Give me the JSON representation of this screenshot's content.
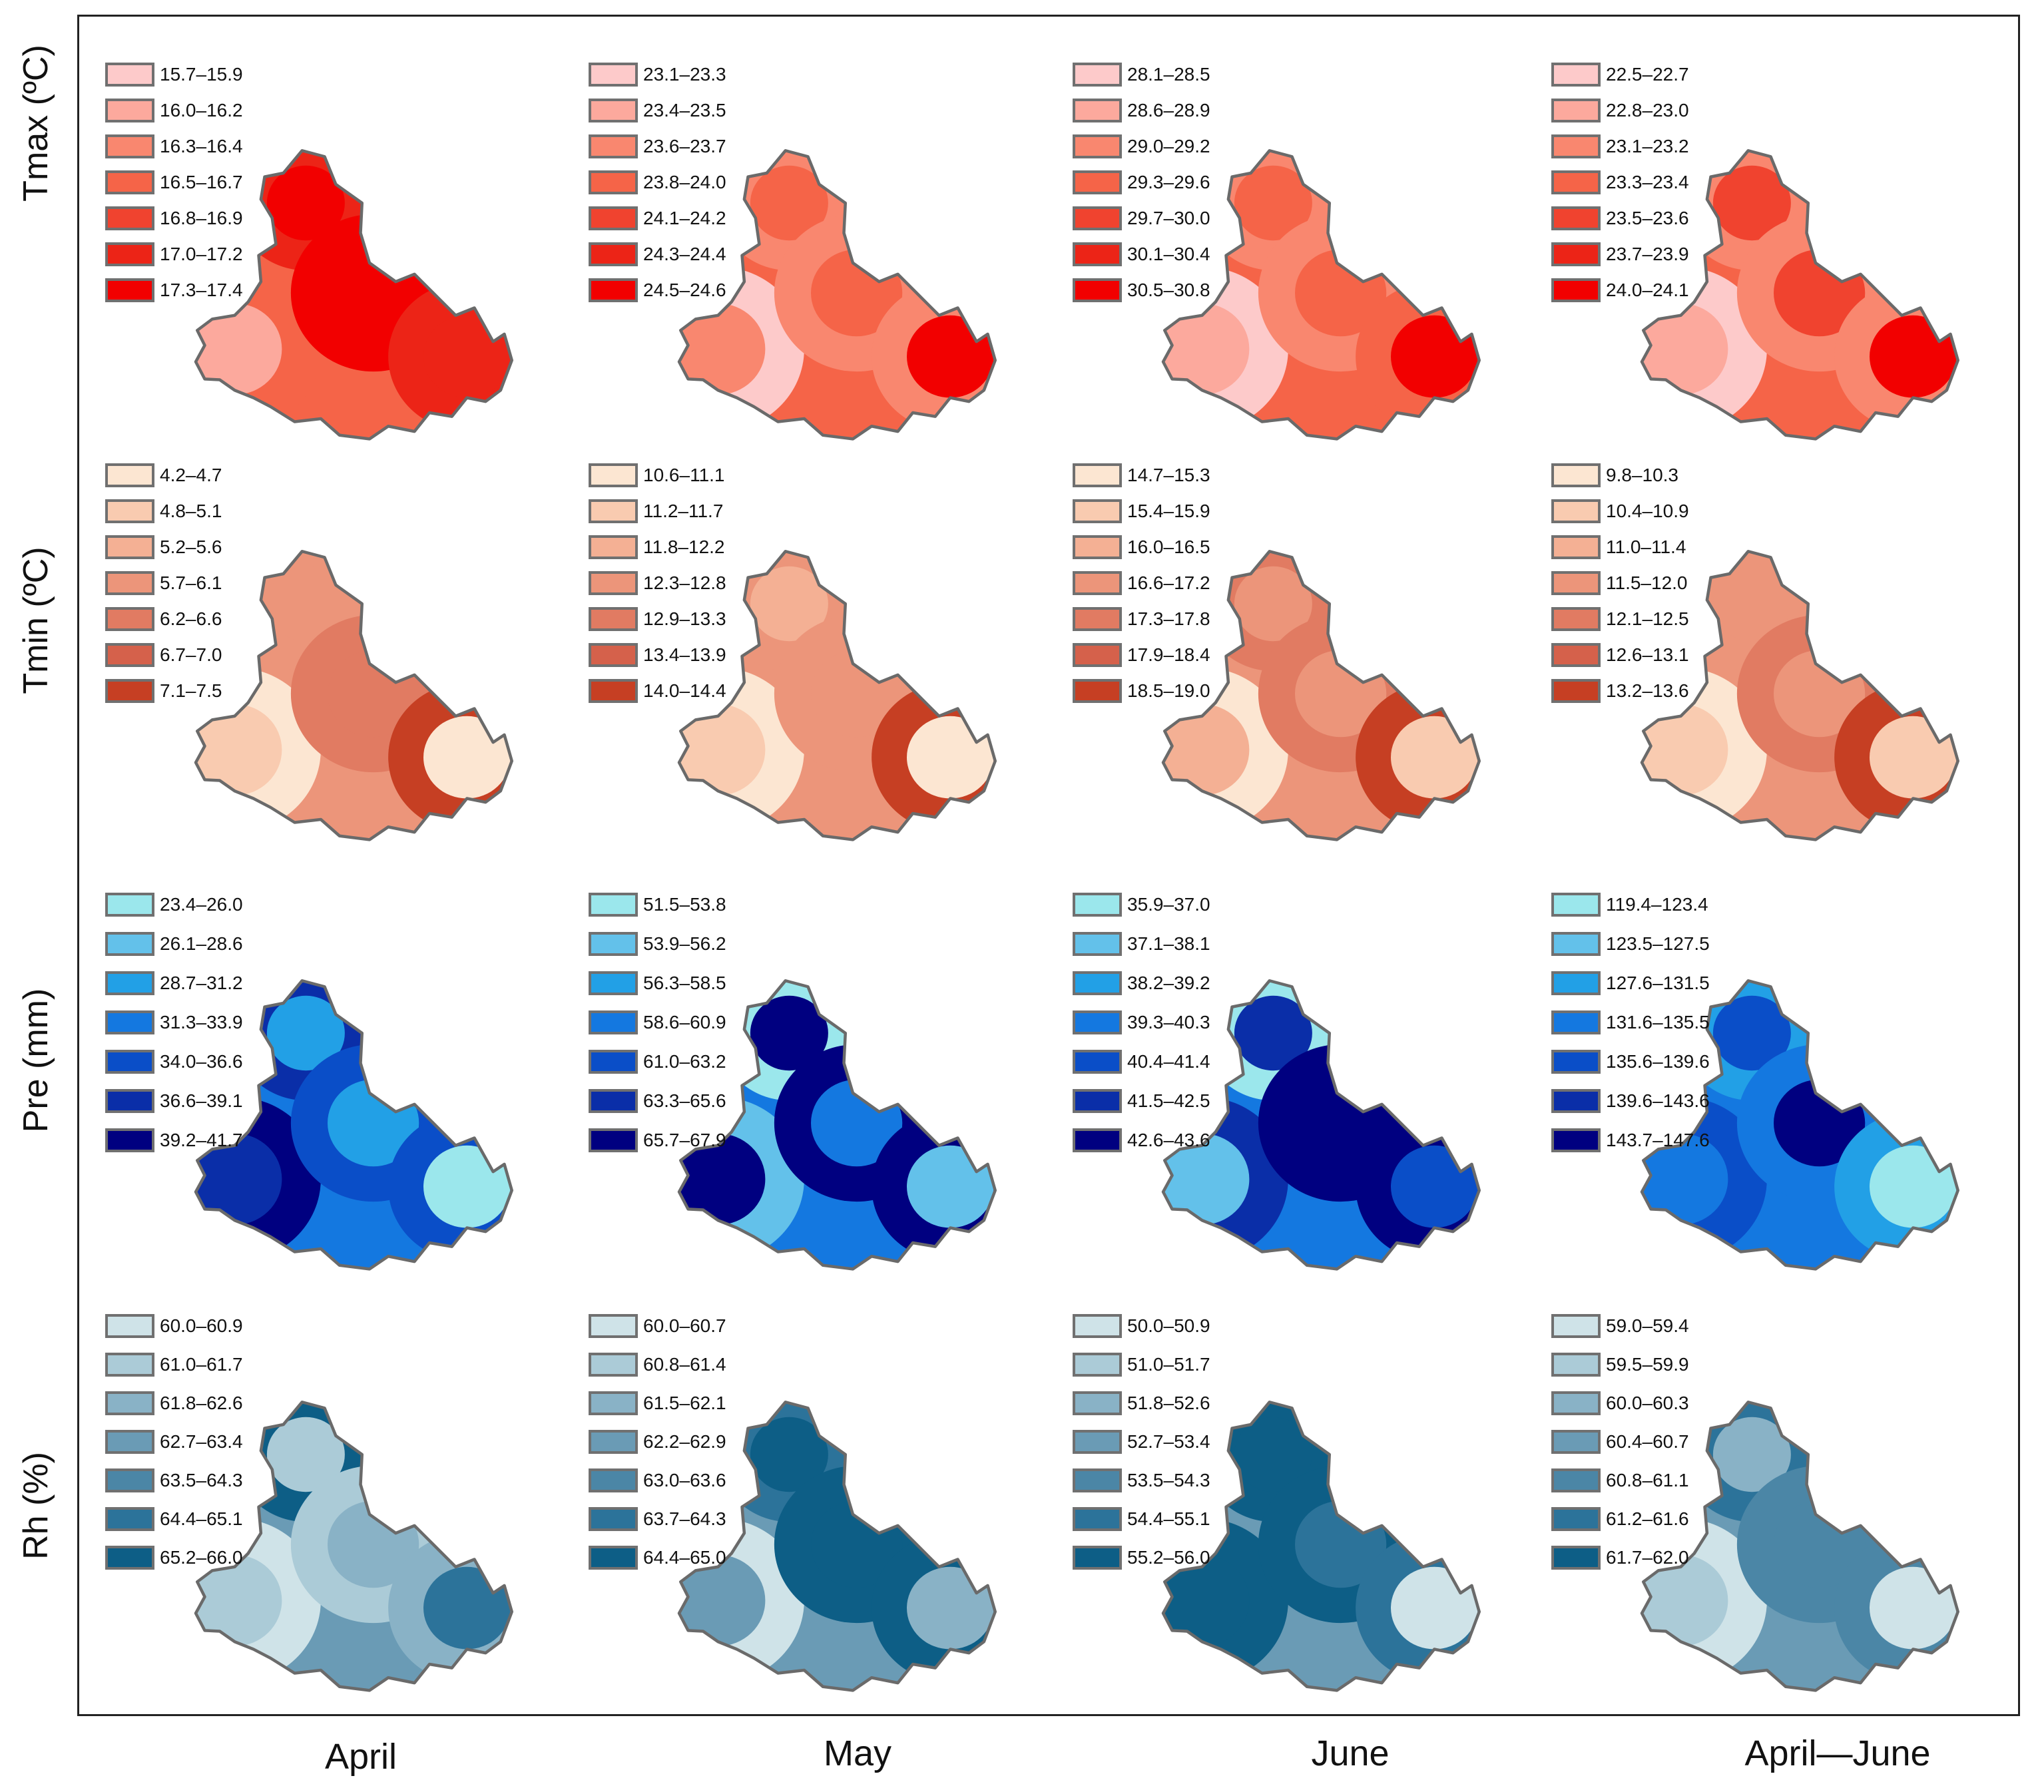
{
  "figure": {
    "row_labels": [
      "Tmax (ºC)",
      "Tmin (ºC)",
      "Pre (mm)",
      "Rh (%)"
    ],
    "column_labels": [
      "April",
      "May",
      "June",
      "April—June"
    ]
  },
  "panels": [
    [
      {
        "legend": [
          "15.7–15.9",
          "16.0–16.2",
          "16.3–16.4",
          "16.5–16.7",
          "16.8–16.9",
          "17.0–17.2",
          "17.3–17.4"
        ],
        "colors": [
          "#fdcaca",
          "#fca99d",
          "#f9876f",
          "#f56448",
          "#f0432f",
          "#ec2417",
          "#f20000"
        ]
      },
      {
        "legend": [
          "23.1–23.3",
          "23.4–23.5",
          "23.6–23.7",
          "23.8–24.0",
          "24.1–24.2",
          "24.3–24.4",
          "24.5–24.6"
        ],
        "colors": [
          "#fdcaca",
          "#fca99d",
          "#f9876f",
          "#f56448",
          "#f0432f",
          "#ec2417",
          "#f20000"
        ]
      },
      {
        "legend": [
          "28.1–28.5",
          "28.6–28.9",
          "29.0–29.2",
          "29.3–29.6",
          "29.7–30.0",
          "30.1–30.4",
          "30.5–30.8"
        ],
        "colors": [
          "#fdcaca",
          "#fca99d",
          "#f9876f",
          "#f56448",
          "#f0432f",
          "#ec2417",
          "#f20000"
        ]
      },
      {
        "legend": [
          "22.5–22.7",
          "22.8–23.0",
          "23.1–23.2",
          "23.3–23.4",
          "23.5–23.6",
          "23.7–23.9",
          "24.0–24.1"
        ],
        "colors": [
          "#fdcaca",
          "#fca99d",
          "#f9876f",
          "#f56448",
          "#f0432f",
          "#ec2417",
          "#f20000"
        ]
      }
    ],
    [
      {
        "legend": [
          "4.2–4.7",
          "4.8–5.1",
          "5.2–5.6",
          "5.7–6.1",
          "6.2–6.6",
          "6.7–7.0",
          "7.1–7.5"
        ],
        "colors": [
          "#fce6d2",
          "#f9cbb0",
          "#f4b094",
          "#ec957a",
          "#e17b62",
          "#d5614b",
          "#c63f23"
        ]
      },
      {
        "legend": [
          "10.6–11.1",
          "11.2–11.7",
          "11.8–12.2",
          "12.3–12.8",
          "12.9–13.3",
          "13.4–13.9",
          "14.0–14.4"
        ],
        "colors": [
          "#fce6d2",
          "#f9cbb0",
          "#f4b094",
          "#ec957a",
          "#e17b62",
          "#d5614b",
          "#c63f23"
        ]
      },
      {
        "legend": [
          "14.7–15.3",
          "15.4–15.9",
          "16.0–16.5",
          "16.6–17.2",
          "17.3–17.8",
          "17.9–18.4",
          "18.5–19.0"
        ],
        "colors": [
          "#fce6d2",
          "#f9cbb0",
          "#f4b094",
          "#ec957a",
          "#e17b62",
          "#d5614b",
          "#c63f23"
        ]
      },
      {
        "legend": [
          "9.8–10.3",
          "10.4–10.9",
          "11.0–11.4",
          "11.5–12.0",
          "12.1–12.5",
          "12.6–13.1",
          "13.2–13.6"
        ],
        "colors": [
          "#fce6d2",
          "#f9cbb0",
          "#f4b094",
          "#ec957a",
          "#e17b62",
          "#d5614b",
          "#c63f23"
        ]
      }
    ],
    [
      {
        "legend": [
          "23.4–26.0",
          "26.1–28.6",
          "28.7–31.2",
          "31.3–33.9",
          "34.0–36.6",
          "36.6–39.1",
          "39.2–41.7"
        ],
        "colors": [
          "#9be7ec",
          "#63c1ea",
          "#22a0e6",
          "#1478e0",
          "#0a4ec8",
          "#0a2ea8",
          "#000080"
        ]
      },
      {
        "legend": [
          "51.5–53.8",
          "53.9–56.2",
          "56.3–58.5",
          "58.6–60.9",
          "61.0–63.2",
          "63.3–65.6",
          "65.7–67.9"
        ],
        "colors": [
          "#9be7ec",
          "#63c1ea",
          "#22a0e6",
          "#1478e0",
          "#0a4ec8",
          "#0a2ea8",
          "#000080"
        ]
      },
      {
        "legend": [
          "35.9–37.0",
          "37.1–38.1",
          "38.2–39.2",
          "39.3–40.3",
          "40.4–41.4",
          "41.5–42.5",
          "42.6–43.6"
        ],
        "colors": [
          "#9be7ec",
          "#63c1ea",
          "#22a0e6",
          "#1478e0",
          "#0a4ec8",
          "#0a2ea8",
          "#000080"
        ]
      },
      {
        "legend": [
          "119.4–123.4",
          "123.5–127.5",
          "127.6–131.5",
          "131.6–135.5",
          "135.6–139.6",
          "139.6–143.6",
          "143.7–147.6"
        ],
        "colors": [
          "#9be7ec",
          "#63c1ea",
          "#22a0e6",
          "#1478e0",
          "#0a4ec8",
          "#0a2ea8",
          "#000080"
        ]
      }
    ],
    [
      {
        "legend": [
          "60.0–60.9",
          "61.0–61.7",
          "61.8–62.6",
          "62.7–63.4",
          "63.5–64.3",
          "64.4–65.1",
          "65.2–66.0"
        ],
        "colors": [
          "#cfe3e8",
          "#abcbd7",
          "#89b2c6",
          "#6a9bb5",
          "#4b86a6",
          "#2c739a",
          "#0d5e86"
        ]
      },
      {
        "legend": [
          "60.0–60.7",
          "60.8–61.4",
          "61.5–62.1",
          "62.2–62.9",
          "63.0–63.6",
          "63.7–64.3",
          "64.4–65.0"
        ],
        "colors": [
          "#cfe3e8",
          "#abcbd7",
          "#89b2c6",
          "#6a9bb5",
          "#4b86a6",
          "#2c739a",
          "#0d5e86"
        ]
      },
      {
        "legend": [
          "50.0–50.9",
          "51.0–51.7",
          "51.8–52.6",
          "52.7–53.4",
          "53.5–54.3",
          "54.4–55.1",
          "55.2–56.0"
        ],
        "colors": [
          "#cfe3e8",
          "#abcbd7",
          "#89b2c6",
          "#6a9bb5",
          "#4b86a6",
          "#2c739a",
          "#0d5e86"
        ]
      },
      {
        "legend": [
          "59.0–59.4",
          "59.5–59.9",
          "60.0–60.3",
          "60.4–60.7",
          "60.8–61.1",
          "61.2–61.6",
          "61.7–62.0"
        ],
        "colors": [
          "#cfe3e8",
          "#abcbd7",
          "#89b2c6",
          "#6a9bb5",
          "#4b86a6",
          "#2c739a",
          "#0d5e86"
        ]
      }
    ]
  ],
  "zone_patterns": [
    [
      [
        [
          0,
          3,
          1
        ],
        [
          1,
          5,
          6
        ],
        [
          2,
          6,
          6
        ],
        [
          3,
          5,
          5
        ]
      ],
      [
        [
          0,
          0,
          2
        ],
        [
          1,
          2,
          3
        ],
        [
          2,
          2,
          3
        ],
        [
          3,
          2,
          6
        ]
      ],
      [
        [
          0,
          0,
          1
        ],
        [
          1,
          2,
          3
        ],
        [
          2,
          2,
          3
        ],
        [
          3,
          3,
          6
        ]
      ],
      [
        [
          0,
          0,
          1
        ],
        [
          1,
          2,
          4
        ],
        [
          2,
          2,
          4
        ],
        [
          3,
          2,
          6
        ]
      ]
    ],
    [
      [
        [
          0,
          0,
          1
        ],
        [
          1,
          3,
          3
        ],
        [
          2,
          4,
          4
        ],
        [
          3,
          6,
          0
        ]
      ],
      [
        [
          0,
          0,
          1
        ],
        [
          1,
          3,
          2
        ],
        [
          2,
          3,
          3
        ],
        [
          3,
          6,
          0
        ]
      ],
      [
        [
          0,
          0,
          2
        ],
        [
          1,
          4,
          3
        ],
        [
          2,
          4,
          3
        ],
        [
          3,
          6,
          1
        ]
      ],
      [
        [
          0,
          0,
          1
        ],
        [
          1,
          3,
          3
        ],
        [
          2,
          4,
          3
        ],
        [
          3,
          6,
          1
        ]
      ]
    ],
    [
      [
        [
          0,
          6,
          5
        ],
        [
          1,
          5,
          2
        ],
        [
          2,
          4,
          2
        ],
        [
          3,
          4,
          0
        ]
      ],
      [
        [
          0,
          1,
          6
        ],
        [
          1,
          0,
          6
        ],
        [
          2,
          6,
          3
        ],
        [
          3,
          6,
          1
        ]
      ],
      [
        [
          0,
          5,
          1
        ],
        [
          1,
          0,
          5
        ],
        [
          2,
          6,
          6
        ],
        [
          3,
          6,
          4
        ]
      ],
      [
        [
          0,
          4,
          3
        ],
        [
          1,
          2,
          4
        ],
        [
          2,
          3,
          6
        ],
        [
          3,
          2,
          0
        ]
      ]
    ],
    [
      [
        [
          0,
          0,
          1
        ],
        [
          1,
          6,
          1
        ],
        [
          2,
          1,
          2
        ],
        [
          3,
          2,
          5
        ]
      ],
      [
        [
          0,
          0,
          3
        ],
        [
          1,
          5,
          6
        ],
        [
          2,
          6,
          6
        ],
        [
          3,
          6,
          2
        ]
      ],
      [
        [
          0,
          6,
          6
        ],
        [
          1,
          6,
          6
        ],
        [
          2,
          6,
          5
        ],
        [
          3,
          5,
          0
        ]
      ],
      [
        [
          0,
          0,
          1
        ],
        [
          1,
          5,
          2
        ],
        [
          2,
          4,
          4
        ],
        [
          3,
          4,
          0
        ]
      ]
    ]
  ]
}
